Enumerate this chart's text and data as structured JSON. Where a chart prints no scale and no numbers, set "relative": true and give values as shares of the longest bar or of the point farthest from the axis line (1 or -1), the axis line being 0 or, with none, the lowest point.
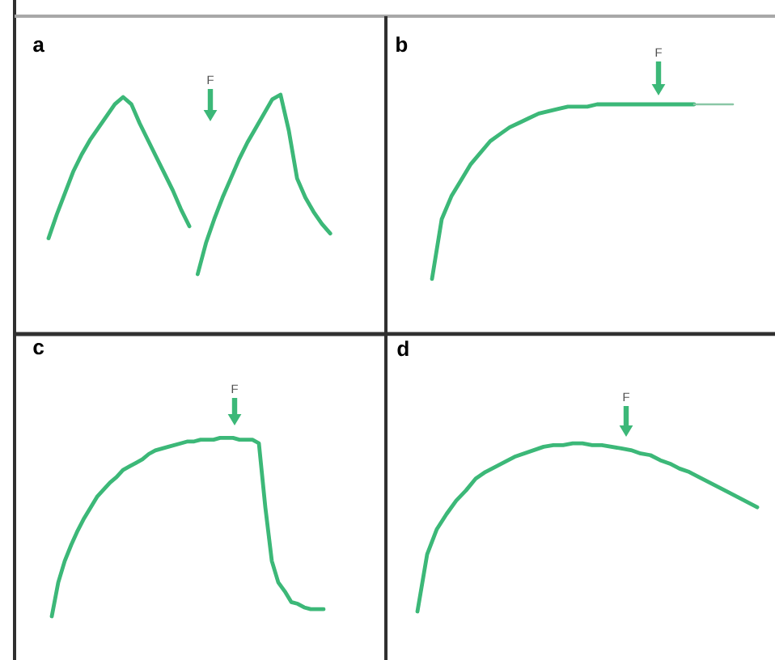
{
  "chart_data": [
    {
      "type": "line",
      "title": "a",
      "relative": true,
      "annotations": [
        "F"
      ],
      "categories": [
        null,
        null,
        null,
        null,
        null,
        null,
        null,
        null,
        null,
        null,
        null,
        null,
        null,
        null,
        null,
        null,
        null,
        null,
        null,
        null,
        null,
        null,
        null,
        null,
        null,
        null,
        null,
        null,
        null,
        null,
        null,
        null,
        null,
        null,
        null
      ],
      "series": [
        {
          "color": "#3cb878",
          "values": [
            0.4,
            0.5,
            0.59,
            0.68,
            0.75,
            0.81,
            0.86,
            0.91,
            0.96,
            0.99,
            0.96,
            0.88,
            0.81,
            0.74,
            0.67,
            0.6,
            0.52,
            0.45,
            null,
            null,
            null,
            null,
            null,
            null,
            null,
            null,
            null,
            null,
            null,
            null,
            null,
            null,
            null,
            null,
            null
          ]
        },
        {
          "color": "#3cb878",
          "values": [
            null,
            null,
            null,
            null,
            null,
            null,
            null,
            null,
            null,
            null,
            null,
            null,
            null,
            null,
            null,
            null,
            null,
            null,
            0.25,
            0.38,
            0.48,
            0.57,
            0.65,
            0.73,
            0.8,
            0.86,
            0.92,
            0.98,
            1,
            0.85,
            0.65,
            0.57,
            0.51,
            0.46,
            0.42
          ]
        }
      ]
    },
    {
      "type": "line",
      "title": "b",
      "relative": true,
      "annotations": [
        "F"
      ],
      "categories": [
        null,
        null,
        null,
        null,
        null,
        null,
        null,
        null,
        null,
        null,
        null,
        null,
        null,
        null,
        null,
        null,
        null,
        null,
        null,
        null,
        null,
        null,
        null,
        null,
        null,
        null,
        null,
        null,
        null,
        null,
        null,
        null
      ],
      "series": [
        {
          "color": "#3cb878",
          "values": [
            0.24,
            0.5,
            0.6,
            0.67,
            0.74,
            0.79,
            0.84,
            0.87,
            0.9,
            0.92,
            0.94,
            0.96,
            0.97,
            0.98,
            0.99,
            0.99,
            0.99,
            1,
            1,
            1,
            1,
            1,
            1,
            1,
            1,
            1,
            1,
            1,
            null,
            null,
            null,
            null
          ]
        },
        {
          "color": "#8ac7a6",
          "values": [
            null,
            null,
            null,
            null,
            null,
            null,
            null,
            null,
            null,
            null,
            null,
            null,
            null,
            null,
            null,
            null,
            null,
            null,
            null,
            null,
            null,
            null,
            null,
            null,
            null,
            null,
            null,
            1,
            1,
            1,
            1,
            1
          ]
        }
      ]
    },
    {
      "type": "line",
      "title": "c",
      "relative": true,
      "color": "#3cb878",
      "annotations": [
        "F"
      ],
      "categories": [
        null,
        null,
        null,
        null,
        null,
        null,
        null,
        null,
        null,
        null,
        null,
        null,
        null,
        null,
        null,
        null,
        null,
        null,
        null,
        null,
        null,
        null,
        null,
        null,
        null,
        null,
        null,
        null,
        null,
        null,
        null,
        null,
        null,
        null,
        null,
        null,
        null,
        null,
        null,
        null,
        null,
        null,
        null
      ],
      "values": [
        0,
        0.19,
        0.31,
        0.4,
        0.48,
        0.55,
        0.61,
        0.67,
        0.71,
        0.75,
        0.78,
        0.82,
        0.84,
        0.86,
        0.88,
        0.91,
        0.93,
        0.94,
        0.95,
        0.96,
        0.97,
        0.98,
        0.98,
        0.99,
        0.99,
        0.99,
        1,
        1,
        1,
        0.99,
        0.99,
        0.99,
        0.97,
        0.61,
        0.31,
        0.19,
        0.14,
        0.08,
        0.07,
        0.05,
        0.04,
        0.04,
        0.04
      ]
    },
    {
      "type": "line",
      "title": "d",
      "relative": true,
      "color": "#3cb878",
      "annotations": [
        "F"
      ],
      "categories": [
        null,
        null,
        null,
        null,
        null,
        null,
        null,
        null,
        null,
        null,
        null,
        null,
        null,
        null,
        null,
        null,
        null,
        null,
        null,
        null,
        null,
        null,
        null,
        null,
        null,
        null,
        null,
        null,
        null,
        null,
        null,
        null,
        null,
        null,
        null,
        null
      ],
      "values": [
        0,
        0.34,
        0.49,
        0.58,
        0.66,
        0.72,
        0.79,
        0.83,
        0.86,
        0.89,
        0.92,
        0.94,
        0.96,
        0.98,
        0.99,
        0.99,
        1,
        1,
        0.99,
        0.99,
        0.98,
        0.97,
        0.96,
        0.94,
        0.93,
        0.9,
        0.88,
        0.85,
        0.83,
        0.8,
        0.77,
        0.74,
        0.71,
        0.68,
        0.65,
        0.62
      ]
    }
  ]
}
